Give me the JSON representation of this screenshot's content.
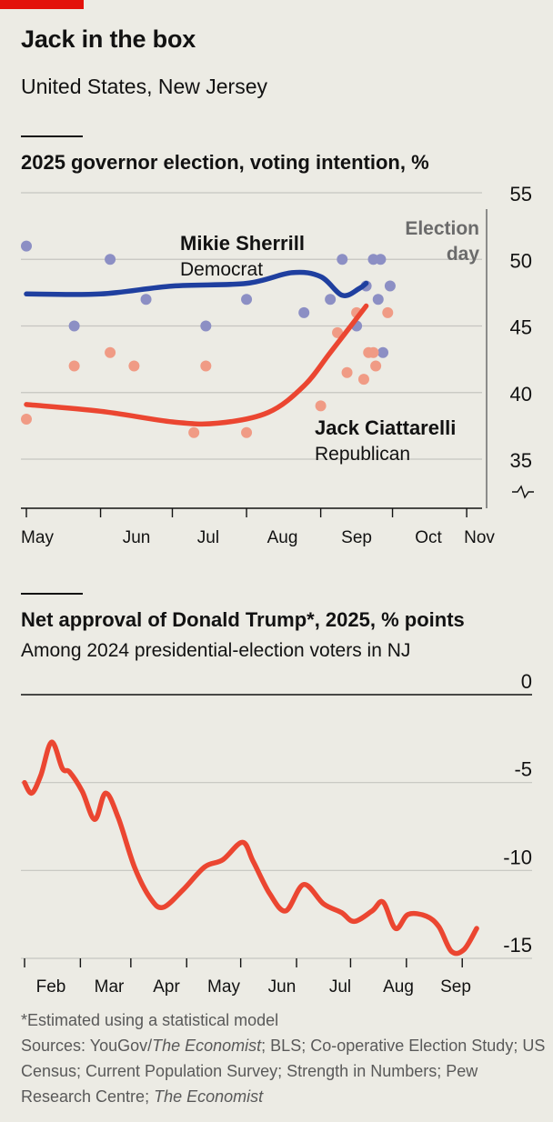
{
  "header": {
    "title": "Jack in the box",
    "subtitle": "United States, New Jersey"
  },
  "chart1": {
    "title": "2025 governor election, voting intention, %",
    "annotation_line1": "Election",
    "annotation_line2": "day",
    "label_dem_name": "Mikie Sherrill",
    "label_dem_party": "Democrat",
    "label_rep_name": "Jack Ciattarelli",
    "label_rep_party": "Republican"
  },
  "chart2": {
    "title": "Net approval of Donald Trump*, 2025, % points",
    "subtitle": "Among 2024 presidential-election voters in NJ"
  },
  "footer": {
    "note": "*Estimated using a statistical model",
    "sources_prefix": "Sources: YouGov/",
    "sources_italic1": "The Economist",
    "sources_mid": "; BLS; Co-operative Election Study; US Census; Current Population Survey; Strength in Numbers; Pew Research Centre; ",
    "sources_italic2": "The Economist"
  },
  "chart_data": [
    {
      "type": "scatter",
      "title": "2025 governor election, voting intention, %",
      "xlabel": "",
      "ylabel": "",
      "x_ticks": [
        "May",
        "Jun",
        "Jul",
        "Aug",
        "Sep",
        "Oct",
        "Nov"
      ],
      "x_range": [
        "2025-05-01",
        "2025-11-04"
      ],
      "ylim": [
        35,
        55
      ],
      "y_ticks": [
        35,
        40,
        45,
        50,
        55
      ],
      "y_axis_broken": true,
      "grid": true,
      "colors": {
        "democrat": "#1f3f9f",
        "democrat_polls": "#8c8fc4",
        "republican": "#eb4631",
        "republican_polls": "#f09b85"
      },
      "series": [
        {
          "name": "Mikie Sherrill",
          "kind": "trend",
          "points": [
            [
              "2025-05-01",
              47.4
            ],
            [
              "2025-06-01",
              47.4
            ],
            [
              "2025-07-01",
              48.0
            ],
            [
              "2025-08-01",
              48.2
            ],
            [
              "2025-08-20",
              49.0
            ],
            [
              "2025-09-01",
              48.7
            ],
            [
              "2025-09-10",
              47.3
            ],
            [
              "2025-09-17",
              47.8
            ],
            [
              "2025-09-20",
              48.2
            ]
          ]
        },
        {
          "name": "Jack Ciattarelli",
          "kind": "trend",
          "points": [
            [
              "2025-05-01",
              39.1
            ],
            [
              "2025-06-01",
              38.6
            ],
            [
              "2025-07-01",
              37.8
            ],
            [
              "2025-07-20",
              37.7
            ],
            [
              "2025-08-10",
              38.5
            ],
            [
              "2025-08-25",
              40.5
            ],
            [
              "2025-09-05",
              43.0
            ],
            [
              "2025-09-20",
              46.5
            ]
          ]
        },
        {
          "name": "Mikie Sherrill",
          "kind": "polls",
          "points": [
            [
              "2025-05-01",
              51
            ],
            [
              "2025-05-21",
              45
            ],
            [
              "2025-06-05",
              50
            ],
            [
              "2025-06-20",
              47
            ],
            [
              "2025-07-15",
              45
            ],
            [
              "2025-08-01",
              47
            ],
            [
              "2025-08-25",
              46
            ],
            [
              "2025-09-05",
              47
            ],
            [
              "2025-09-10",
              50
            ],
            [
              "2025-09-16",
              45
            ],
            [
              "2025-09-20",
              48
            ],
            [
              "2025-09-23",
              50
            ],
            [
              "2025-09-25",
              47
            ],
            [
              "2025-09-26",
              50
            ],
            [
              "2025-09-27",
              43
            ],
            [
              "2025-09-30",
              48
            ]
          ]
        },
        {
          "name": "Jack Ciattarelli",
          "kind": "polls",
          "points": [
            [
              "2025-05-01",
              38
            ],
            [
              "2025-05-21",
              42
            ],
            [
              "2025-06-05",
              43
            ],
            [
              "2025-06-15",
              42
            ],
            [
              "2025-07-10",
              37
            ],
            [
              "2025-07-15",
              42
            ],
            [
              "2025-08-01",
              37
            ],
            [
              "2025-09-01",
              39
            ],
            [
              "2025-09-08",
              44.5
            ],
            [
              "2025-09-12",
              41.5
            ],
            [
              "2025-09-16",
              46
            ],
            [
              "2025-09-19",
              41
            ],
            [
              "2025-09-21",
              43
            ],
            [
              "2025-09-23",
              43
            ],
            [
              "2025-09-24",
              42
            ],
            [
              "2025-09-29",
              46
            ]
          ]
        }
      ]
    },
    {
      "type": "line",
      "title": "Net approval of Donald Trump*, 2025, % points",
      "subtitle": "Among 2024 presidential-election voters in NJ",
      "x_ticks": [
        "Feb",
        "Mar",
        "Apr",
        "May",
        "Jun",
        "Jul",
        "Aug",
        "Sep"
      ],
      "x_range": [
        "2025-01-20",
        "2025-10-01"
      ],
      "ylim": [
        -15,
        0
      ],
      "y_ticks": [
        0,
        -5,
        -10,
        -15
      ],
      "grid": true,
      "series": [
        {
          "name": "Net approval of Donald Trump",
          "points": [
            [
              "2025-01-20",
              -5.0
            ],
            [
              "2025-01-24",
              -5.6
            ],
            [
              "2025-01-29",
              -4.6
            ],
            [
              "2025-02-04",
              -2.7
            ],
            [
              "2025-02-10",
              -4.2
            ],
            [
              "2025-02-14",
              -4.4
            ],
            [
              "2025-02-21",
              -5.5
            ],
            [
              "2025-02-28",
              -7.1
            ],
            [
              "2025-03-06",
              -5.6
            ],
            [
              "2025-03-13",
              -7.0
            ],
            [
              "2025-03-22",
              -9.8
            ],
            [
              "2025-03-31",
              -11.6
            ],
            [
              "2025-04-07",
              -12.1
            ],
            [
              "2025-04-18",
              -11.1
            ],
            [
              "2025-04-30",
              -9.8
            ],
            [
              "2025-05-10",
              -9.4
            ],
            [
              "2025-05-21",
              -8.4
            ],
            [
              "2025-05-27",
              -9.5
            ],
            [
              "2025-06-05",
              -11.3
            ],
            [
              "2025-06-14",
              -12.3
            ],
            [
              "2025-06-24",
              -10.8
            ],
            [
              "2025-07-05",
              -11.9
            ],
            [
              "2025-07-15",
              -12.4
            ],
            [
              "2025-07-22",
              -12.9
            ],
            [
              "2025-08-01",
              -12.3
            ],
            [
              "2025-08-07",
              -11.8
            ],
            [
              "2025-08-14",
              -13.3
            ],
            [
              "2025-08-21",
              -12.5
            ],
            [
              "2025-08-31",
              -12.6
            ],
            [
              "2025-09-07",
              -13.2
            ],
            [
              "2025-09-14",
              -14.6
            ],
            [
              "2025-09-21",
              -14.5
            ],
            [
              "2025-09-28",
              -13.3
            ]
          ]
        }
      ]
    }
  ]
}
